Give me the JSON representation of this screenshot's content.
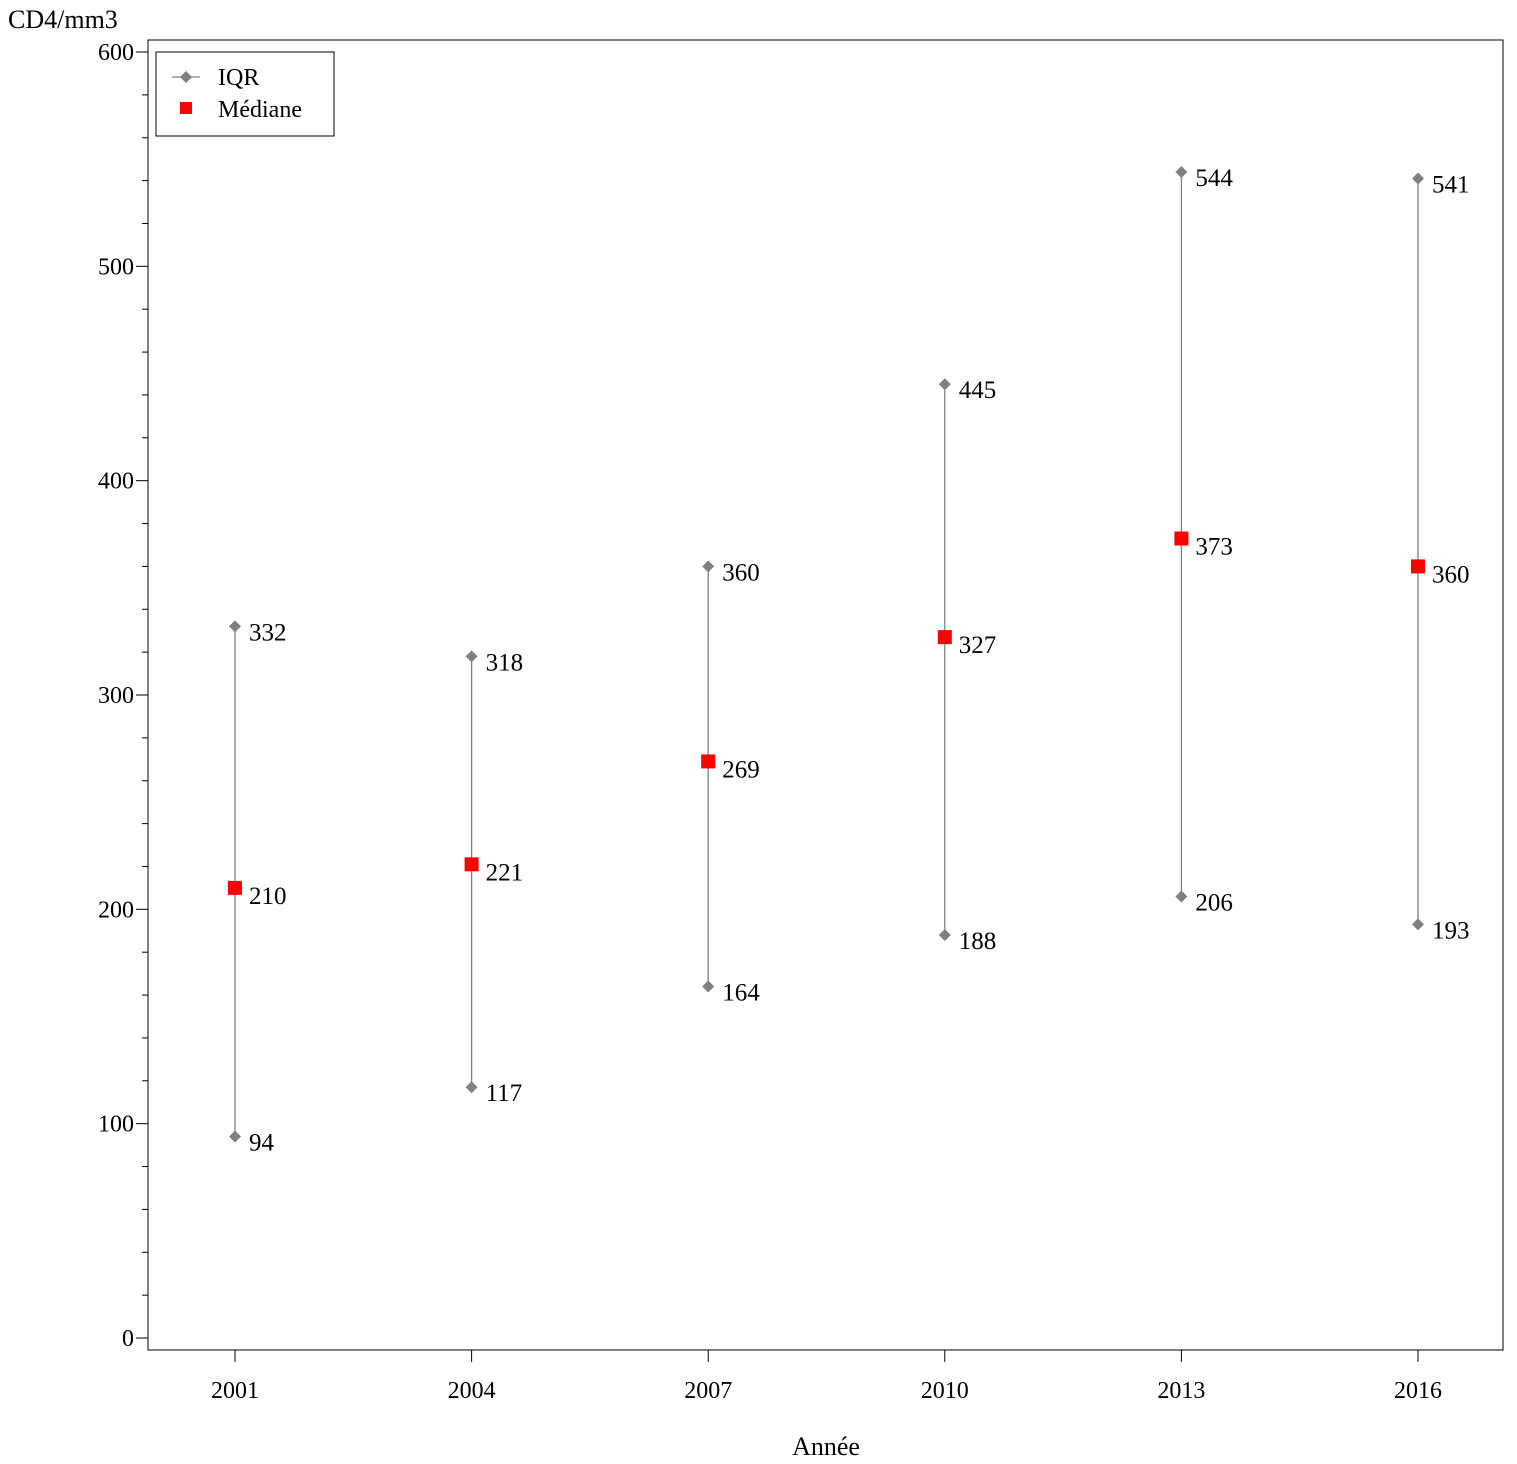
{
  "chart_data": {
    "type": "scatter",
    "ylabel": "CD4/mm3",
    "xlabel": "Année",
    "categories": [
      "2001",
      "2004",
      "2007",
      "2010",
      "2013",
      "2016"
    ],
    "series": [
      {
        "name": "IQR",
        "marker": "diamond",
        "color": "#808080",
        "low": [
          94,
          117,
          164,
          188,
          206,
          193
        ],
        "high": [
          332,
          318,
          360,
          445,
          544,
          541
        ]
      },
      {
        "name": "Médiane",
        "marker": "square",
        "color": "#ff0000",
        "values": [
          210,
          221,
          269,
          327,
          373,
          360
        ]
      }
    ],
    "ylim": [
      0,
      600
    ],
    "yticks": [
      0,
      100,
      200,
      300,
      400,
      500,
      600
    ],
    "grid": false,
    "legend": "top-left"
  }
}
